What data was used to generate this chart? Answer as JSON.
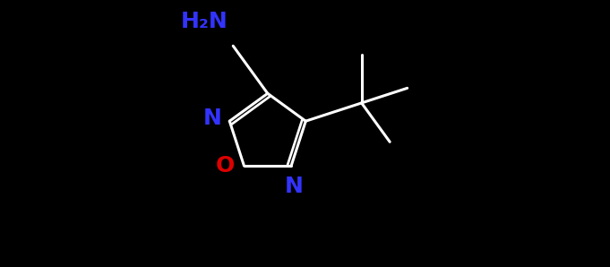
{
  "bg_color": "#000000",
  "bond_color": "#ffffff",
  "n_color": "#3333ff",
  "o_color": "#dd0000",
  "nh2_color": "#3333ff",
  "figsize": [
    6.81,
    2.98
  ],
  "dpi": 100,
  "xlim": [
    0,
    11
  ],
  "ylim": [
    0,
    5
  ]
}
